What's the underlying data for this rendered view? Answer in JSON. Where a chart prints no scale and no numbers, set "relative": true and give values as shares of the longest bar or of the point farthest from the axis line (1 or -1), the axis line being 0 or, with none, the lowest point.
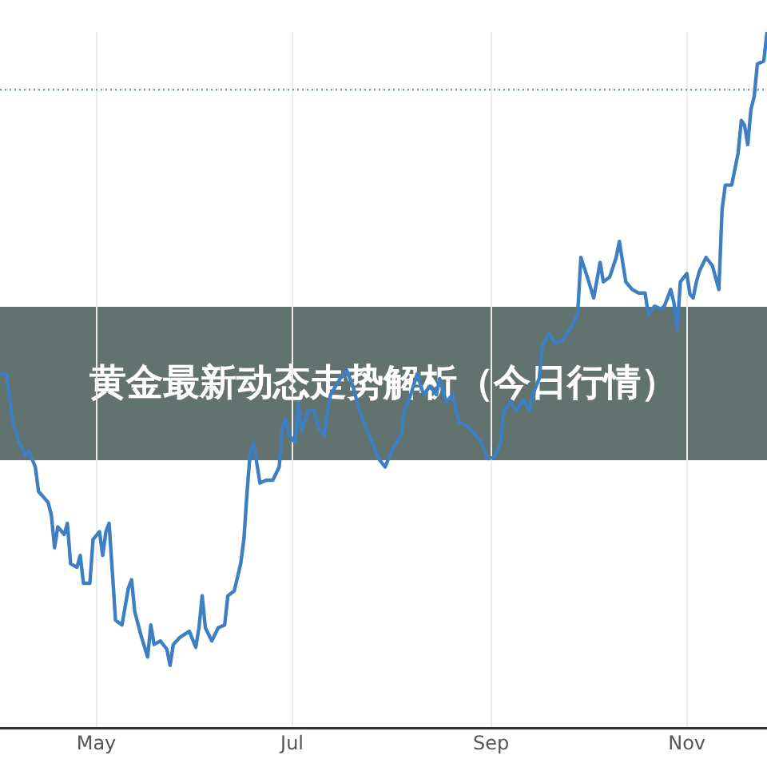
{
  "chart_data": {
    "type": "line",
    "title": "黄金最新动态走势解析（今日行情）",
    "relative": true,
    "grid": "x",
    "legend": false,
    "marker": "none",
    "line_style": "solid",
    "xlim": [
      "--04-01",
      "--11-26"
    ],
    "xticks": [
      {
        "value": "--05-01",
        "label": "May"
      },
      {
        "value": "--07-01",
        "label": "Jul"
      },
      {
        "value": "--09-01",
        "label": "Sep"
      },
      {
        "value": "--11-01",
        "label": "Nov"
      }
    ],
    "ref_lines": [
      {
        "axis": "y",
        "value": 0.917,
        "color": "#6a9bd1",
        "line_style": "dotted"
      }
    ],
    "series": [
      {
        "color": "#3d7fc1",
        "x": [
          "--04-01",
          "--04-03",
          "--04-05",
          "--04-07",
          "--04-09",
          "--04-10",
          "--04-12",
          "--04-13",
          "--04-16",
          "--04-17",
          "--04-18",
          "--04-19",
          "--04-21",
          "--04-22",
          "--04-23",
          "--04-25",
          "--04-26",
          "--04-27",
          "--04-29",
          "--04-30",
          "--05-02",
          "--05-03",
          "--05-04",
          "--05-05",
          "--05-06",
          "--05-07",
          "--05-09",
          "--05-11",
          "--05-12",
          "--05-13",
          "--05-15",
          "--05-17",
          "--05-18",
          "--05-19",
          "--05-21",
          "--05-23",
          "--05-24",
          "--05-25",
          "--05-27",
          "--05-30",
          "--06-01",
          "--06-02",
          "--06-03",
          "--06-04",
          "--06-06",
          "--06-08",
          "--06-10",
          "--06-11",
          "--06-13",
          "--06-15",
          "--06-16",
          "--06-17",
          "--06-18",
          "--06-19",
          "--06-21",
          "--06-23",
          "--06-25",
          "--06-27",
          "--06-28",
          "--06-29",
          "--06-30",
          "--07-02",
          "--07-03",
          "--07-04",
          "--07-06",
          "--07-08",
          "--07-09",
          "--07-11",
          "--07-13",
          "--07-16",
          "--07-18",
          "--07-20",
          "--07-22",
          "--07-25",
          "--07-28",
          "--07-30",
          "--08-01",
          "--08-04",
          "--08-05",
          "--08-07",
          "--08-09",
          "--08-11",
          "--08-13",
          "--08-15",
          "--08-16",
          "--08-18",
          "--08-20",
          "--08-22",
          "--08-25",
          "--08-27",
          "--08-29",
          "--08-31",
          "--09-02",
          "--09-04",
          "--09-05",
          "--09-07",
          "--09-09",
          "--09-11",
          "--09-13",
          "--09-14",
          "--09-16",
          "--09-17",
          "--09-19",
          "--09-21",
          "--09-23",
          "--09-26",
          "--09-28",
          "--09-29",
          "--10-01",
          "--10-03",
          "--10-05",
          "--10-06",
          "--10-08",
          "--10-10",
          "--10-11",
          "--10-13",
          "--10-15",
          "--10-17",
          "--10-19",
          "--10-20",
          "--10-22",
          "--10-24",
          "--10-25",
          "--10-27",
          "--10-28",
          "--10-29",
          "--10-30",
          "--11-01",
          "--11-02",
          "--11-03",
          "--11-04",
          "--11-05",
          "--11-07",
          "--11-09",
          "--11-11",
          "--11-12",
          "--11-13",
          "--11-15",
          "--11-17",
          "--11-18",
          "--11-19",
          "--11-20",
          "--11-21",
          "--11-22",
          "--11-23",
          "--11-25",
          "--11-26"
        ],
        "values": [
          0.509,
          0.509,
          0.44,
          0.41,
          0.391,
          0.398,
          0.375,
          0.34,
          0.324,
          0.306,
          0.259,
          0.289,
          0.278,
          0.294,
          0.236,
          0.231,
          0.248,
          0.208,
          0.208,
          0.271,
          0.282,
          0.248,
          0.282,
          0.294,
          0.225,
          0.155,
          0.148,
          0.201,
          0.213,
          0.167,
          0.132,
          0.102,
          0.148,
          0.12,
          0.125,
          0.113,
          0.09,
          0.12,
          0.13,
          0.139,
          0.116,
          0.144,
          0.19,
          0.144,
          0.125,
          0.144,
          0.148,
          0.19,
          0.197,
          0.236,
          0.271,
          0.34,
          0.398,
          0.41,
          0.352,
          0.356,
          0.356,
          0.375,
          0.433,
          0.444,
          0.421,
          0.41,
          0.468,
          0.426,
          0.456,
          0.456,
          0.433,
          0.421,
          0.479,
          0.502,
          0.514,
          0.491,
          0.456,
          0.421,
          0.387,
          0.375,
          0.398,
          0.421,
          0.456,
          0.479,
          0.509,
          0.479,
          0.491,
          0.479,
          0.502,
          0.468,
          0.479,
          0.44,
          0.433,
          0.421,
          0.41,
          0.387,
          0.389,
          0.41,
          0.456,
          0.468,
          0.456,
          0.472,
          0.456,
          0.479,
          0.502,
          0.549,
          0.567,
          0.553,
          0.556,
          0.576,
          0.595,
          0.676,
          0.648,
          0.618,
          0.669,
          0.641,
          0.648,
          0.676,
          0.699,
          0.641,
          0.63,
          0.625,
          0.625,
          0.595,
          0.606,
          0.602,
          0.606,
          0.63,
          0.611,
          0.572,
          0.641,
          0.653,
          0.623,
          0.618,
          0.641,
          0.657,
          0.676,
          0.664,
          0.63,
          0.745,
          0.78,
          0.78,
          0.826,
          0.873,
          0.866,
          0.838,
          0.889,
          0.907,
          0.954,
          0.958,
          1.0
        ]
      }
    ]
  }
}
